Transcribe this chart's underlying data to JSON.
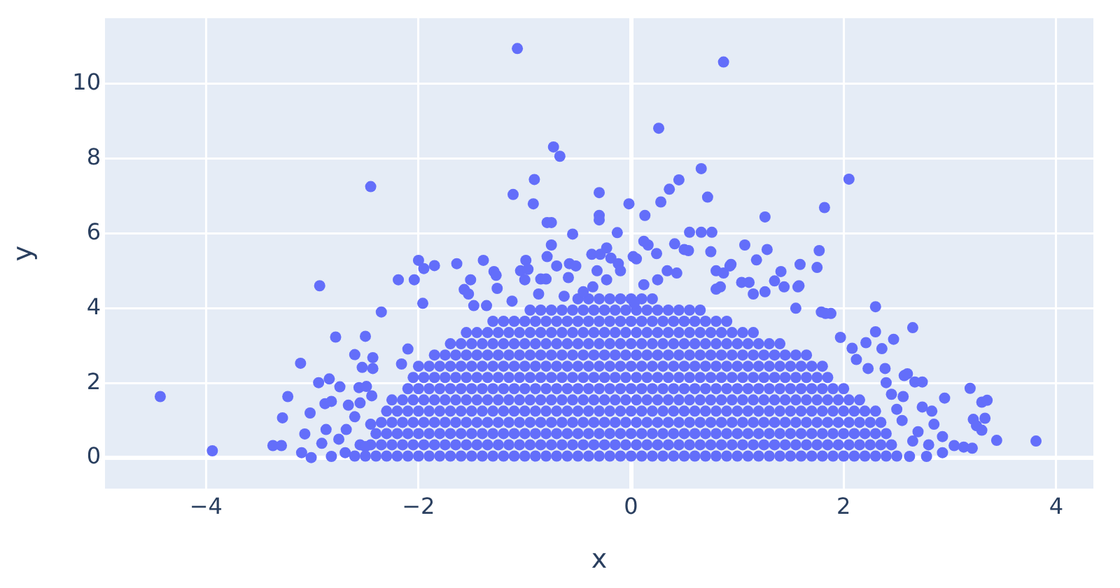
{
  "chart_data": {
    "type": "scatter",
    "xlabel": "x",
    "ylabel": "y",
    "color": "#636efa",
    "marker": "circle",
    "grid": true,
    "xlim": [
      -4.95,
      4.35
    ],
    "ylim": [
      -0.82,
      11.75
    ],
    "xticks": [
      {
        "value": -4,
        "label": "−4"
      },
      {
        "value": -2,
        "label": "−2"
      },
      0,
      2,
      4
    ],
    "yticks": [
      0,
      2,
      4,
      6,
      8,
      10
    ],
    "x": [
      -2.6,
      -2.5,
      -2.4,
      -2.3,
      -2.2,
      -2.1,
      -2,
      -1.9,
      -1.8,
      -1.7,
      -1.6,
      -1.5,
      -1.4,
      -1.3,
      -1.2,
      -1.1,
      -1,
      -0.9,
      -0.8,
      -0.7,
      -0.6,
      -0.5,
      -0.4,
      -0.3,
      -0.2,
      -0.1,
      0,
      0.1,
      0.2,
      0.3,
      0.4,
      0.5,
      0.6,
      0.7,
      0.8,
      0.9,
      1,
      1.1,
      1.2,
      1.3,
      1.4,
      1.5,
      1.6,
      1.7,
      1.8,
      1.9,
      2,
      2.1,
      2.2,
      2.3,
      2.4,
      2.5,
      -2.55,
      -2.45,
      -2.35,
      -2.25,
      -2.15,
      -2.05,
      -1.95,
      -1.85,
      -1.75,
      -1.65,
      -1.55,
      -1.45,
      -1.35,
      -1.25,
      -1.15,
      -1.05,
      -0.95,
      -0.85,
      -0.75,
      -0.65,
      -0.55,
      -0.45,
      -0.35,
      -0.25,
      -0.15,
      -0.05,
      0.05,
      0.15,
      0.25,
      0.35,
      0.45,
      0.55,
      0.65,
      0.75,
      0.85,
      0.95,
      1.05,
      1.15,
      1.25,
      1.35,
      1.45,
      1.55,
      1.65,
      1.75,
      1.85,
      1.95,
      2.05,
      2.15,
      2.25,
      2.35,
      2.45,
      -2.4,
      -2.3,
      -2.2,
      -2.1,
      -2,
      -1.9,
      -1.8,
      -1.7,
      -1.6,
      -1.5,
      -1.4,
      -1.3,
      -1.2,
      -1.1,
      -1,
      -0.9,
      -0.8,
      -0.7,
      -0.6,
      -0.5,
      -0.4,
      -0.3,
      -0.2,
      -0.1,
      0,
      0.1,
      0.2,
      0.3,
      0.4,
      0.5,
      0.6,
      0.7,
      0.8,
      0.9,
      1,
      1.1,
      1.2,
      1.3,
      1.4,
      1.5,
      1.6,
      1.7,
      1.8,
      1.9,
      2,
      2.1,
      2.2,
      2.3,
      2.4,
      -2.35,
      -2.25,
      -2.15,
      -2.05,
      -1.95,
      -1.85,
      -1.75,
      -1.65,
      -1.55,
      -1.45,
      -1.35,
      -1.25,
      -1.15,
      -1.05,
      -0.95,
      -0.85,
      -0.75,
      -0.65,
      -0.55,
      -0.45,
      -0.35,
      -0.25,
      -0.15,
      -0.05,
      0.05,
      0.15,
      0.25,
      0.35,
      0.45,
      0.55,
      0.65,
      0.75,
      0.85,
      0.95,
      1.05,
      1.15,
      1.25,
      1.35,
      1.45,
      1.55,
      1.65,
      1.75,
      1.85,
      1.95,
      2.05,
      2.15,
      2.25,
      2.35,
      -2.3,
      -2.2,
      -2.1,
      -2,
      -1.9,
      -1.8,
      -1.7,
      -1.6,
      -1.5,
      -1.4,
      -1.3,
      -1.2,
      -1.1,
      -1,
      -0.9,
      -0.8,
      -0.7,
      -0.6,
      -0.5,
      -0.4,
      -0.3,
      -0.2,
      -0.1,
      0,
      0.1,
      0.2,
      0.3,
      0.4,
      0.5,
      0.6,
      0.7,
      0.8,
      0.9,
      1,
      1.1,
      1.2,
      1.3,
      1.4,
      1.5,
      1.6,
      1.7,
      1.8,
      1.9,
      2,
      2.1,
      2.2,
      2.3,
      -2.25,
      -2.15,
      -2.05,
      -1.95,
      -1.85,
      -1.75,
      -1.65,
      -1.55,
      -1.45,
      -1.35,
      -1.25,
      -1.15,
      -1.05,
      -0.95,
      -0.85,
      -0.75,
      -0.65,
      -0.55,
      -0.45,
      -0.35,
      -0.25,
      -0.15,
      -0.05,
      0.05,
      0.15,
      0.25,
      0.35,
      0.45,
      0.55,
      0.65,
      0.75,
      0.85,
      0.95,
      1.05,
      1.15,
      1.25,
      1.35,
      1.45,
      1.55,
      1.65,
      1.75,
      1.85,
      1.95,
      2.05,
      2.15,
      -2.1,
      -2,
      -1.9,
      -1.8,
      -1.7,
      -1.6,
      -1.5,
      -1.4,
      -1.3,
      -1.2,
      -1.1,
      -1,
      -0.9,
      -0.8,
      -0.7,
      -0.6,
      -0.5,
      -0.4,
      -0.3,
      -0.2,
      -0.1,
      0,
      0.1,
      0.2,
      0.3,
      0.4,
      0.5,
      0.6,
      0.7,
      0.8,
      0.9,
      1,
      1.1,
      1.2,
      1.3,
      1.4,
      1.5,
      1.6,
      1.7,
      1.8,
      1.9,
      2,
      -2.05,
      -1.95,
      -1.85,
      -1.75,
      -1.65,
      -1.55,
      -1.45,
      -1.35,
      -1.25,
      -1.15,
      -1.05,
      -0.95,
      -0.85,
      -0.75,
      -0.65,
      -0.55,
      -0.45,
      -0.35,
      -0.25,
      -0.15,
      -0.05,
      0.05,
      0.15,
      0.25,
      0.35,
      0.45,
      0.55,
      0.65,
      0.75,
      0.85,
      0.95,
      1.05,
      1.15,
      1.25,
      1.35,
      1.45,
      1.55,
      1.65,
      1.75,
      1.85,
      -2,
      -1.9,
      -1.8,
      -1.7,
      -1.6,
      -1.5,
      -1.4,
      -1.3,
      -1.2,
      -1.1,
      -1,
      -0.9,
      -0.8,
      -0.7,
      -0.6,
      -0.5,
      -0.4,
      -0.3,
      -0.2,
      -0.1,
      0,
      0.1,
      0.2,
      0.3,
      0.4,
      0.5,
      0.6,
      0.7,
      0.8,
      0.9,
      1,
      1.1,
      1.2,
      1.3,
      1.4,
      1.5,
      1.6,
      1.7,
      1.8,
      -1.85,
      -1.75,
      -1.65,
      -1.55,
      -1.45,
      -1.35,
      -1.25,
      -1.15,
      -1.05,
      -0.95,
      -0.85,
      -0.75,
      -0.65,
      -0.55,
      -0.45,
      -0.35,
      -0.25,
      -0.15,
      -0.05,
      0.05,
      0.15,
      0.25,
      0.35,
      0.45,
      0.55,
      0.65,
      0.75,
      0.85,
      0.95,
      1.05,
      1.15,
      1.25,
      1.35,
      1.45,
      1.55,
      1.65,
      -1.7,
      -1.6,
      -1.5,
      -1.4,
      -1.3,
      -1.2,
      -1.1,
      -1,
      -0.9,
      -0.8,
      -0.7,
      -0.6,
      -0.5,
      -0.4,
      -0.3,
      -0.2,
      -0.1,
      0,
      0.1,
      0.2,
      0.3,
      0.4,
      0.5,
      0.6,
      0.7,
      0.8,
      0.9,
      1,
      1.1,
      1.2,
      1.3,
      1.4,
      -1.55,
      -1.45,
      -1.35,
      -1.25,
      -1.15,
      -1.05,
      -0.95,
      -0.85,
      -0.75,
      -0.65,
      -0.55,
      -0.45,
      -0.35,
      -0.25,
      -0.15,
      -0.05,
      0.05,
      0.15,
      0.25,
      0.35,
      0.45,
      0.55,
      0.65,
      0.75,
      0.85,
      0.95,
      1.05,
      1.15,
      -1.3,
      -1.2,
      -1.1,
      -1,
      -0.9,
      -0.8,
      -0.7,
      -0.6,
      -0.5,
      -0.4,
      -0.3,
      -0.2,
      -0.1,
      0,
      0.1,
      0.2,
      0.3,
      0.4,
      0.5,
      0.6,
      0.7,
      0.8,
      0.9,
      -0.95,
      -0.85,
      -0.75,
      -0.65,
      -0.55,
      -0.45,
      -0.35,
      -0.25,
      -0.15,
      -0.05,
      0.05,
      0.15,
      0.25,
      0.35,
      0.45,
      0.55,
      0.65,
      -0.5,
      -0.4,
      -0.3,
      -0.2,
      -0.1,
      0,
      0.1,
      0.2,
      -4.43,
      -3.94,
      -3.37,
      -3.29,
      -3.23,
      -3.28,
      -3.11,
      -2.93,
      -2.94,
      -2.84,
      -2.78,
      -2.74,
      -2.5,
      -2.6,
      -2.43,
      -2.43,
      -2.35,
      -2.53,
      -3.07,
      -3.1,
      -3.01,
      -3.02,
      -2.88,
      -2.82,
      -2.82,
      -2.68,
      -2.56,
      -2.49,
      -2.44,
      -2.66,
      -2.55,
      -2.16,
      -2.1,
      -1.96,
      -2.19,
      -2.04,
      -2.87,
      -2.91,
      -2.69,
      -2.75,
      -1.07,
      -2.45,
      -0.73,
      -0.67,
      -0.91,
      -1.11,
      -0.92,
      -0.79,
      -0.75,
      -0.75,
      -0.79,
      -0.99,
      -1.04,
      -0.97,
      -2,
      -1.95,
      -1.85,
      -1.64,
      -1.39,
      -1.29,
      -1.27,
      -1.51,
      -1,
      -0.85,
      -0.8,
      -0.7,
      -1.57,
      -1.53,
      -1.26,
      -1.36,
      -1.48,
      -1.12,
      -0.87,
      -0.58,
      -0.52,
      -0.59,
      -0.63,
      -0.45,
      -0.36,
      -0.37,
      -0.29,
      -0.23,
      -0.19,
      -0.12,
      -0.1,
      0.02,
      0.16,
      -0.32,
      -0.23,
      0.87,
      0.26,
      0.66,
      0.45,
      0.36,
      0.28,
      0.72,
      -0.02,
      -0.3,
      -0.3,
      -0.3,
      0.13,
      2.05,
      1.82,
      1.26,
      -0.55,
      -0.13,
      0.55,
      0.66,
      0.76,
      1.07,
      1.28,
      1.77,
      1.75,
      1.59,
      1.41,
      0.75,
      0.24,
      0.12,
      0.41,
      0.54,
      1.58,
      1.18,
      0.94,
      0.05,
      0.5,
      0.8,
      0.87,
      0.93,
      1.04,
      1.11,
      1.35,
      1.44,
      1.55,
      0.8,
      0.84,
      1.26,
      1.15,
      1.79,
      1.88,
      2.12,
      2.23,
      2.39,
      2.4,
      2.56,
      2.57,
      0.12,
      0.25,
      0.34,
      0.43,
      0.03,
      3.81,
      3.44,
      3.19,
      3.3,
      3.35,
      3.33,
      3.22,
      3.3,
      3.25,
      2.95,
      3.04,
      3.13,
      3.21,
      2.3,
      2.65,
      2.47,
      2.3,
      2.36,
      2.21,
      2.08,
      2.6,
      2.67,
      2.74,
      2.83,
      2.74,
      2.93,
      1.97,
      1.83,
      1.57,
      2.78,
      2.62,
      2.93,
      2.7,
      2.85,
      2.55,
      2.65,
      2.8,
      2.5,
      2.45,
      -2.45,
      -2.6,
      -2.5
    ],
    "values": [
      0.05,
      0.05,
      0.05,
      0.05,
      0.05,
      0.05,
      0.05,
      0.05,
      0.05,
      0.05,
      0.05,
      0.05,
      0.05,
      0.05,
      0.05,
      0.05,
      0.05,
      0.05,
      0.05,
      0.05,
      0.05,
      0.05,
      0.05,
      0.05,
      0.05,
      0.05,
      0.05,
      0.05,
      0.05,
      0.05,
      0.05,
      0.05,
      0.05,
      0.05,
      0.05,
      0.05,
      0.05,
      0.05,
      0.05,
      0.05,
      0.05,
      0.05,
      0.05,
      0.05,
      0.05,
      0.05,
      0.05,
      0.05,
      0.05,
      0.05,
      0.05,
      0.05,
      0.35,
      0.35,
      0.35,
      0.35,
      0.35,
      0.35,
      0.35,
      0.35,
      0.35,
      0.35,
      0.35,
      0.35,
      0.35,
      0.35,
      0.35,
      0.35,
      0.35,
      0.35,
      0.35,
      0.35,
      0.35,
      0.35,
      0.35,
      0.35,
      0.35,
      0.35,
      0.35,
      0.35,
      0.35,
      0.35,
      0.35,
      0.35,
      0.35,
      0.35,
      0.35,
      0.35,
      0.35,
      0.35,
      0.35,
      0.35,
      0.35,
      0.35,
      0.35,
      0.35,
      0.35,
      0.35,
      0.35,
      0.35,
      0.35,
      0.35,
      0.35,
      0.65,
      0.65,
      0.65,
      0.65,
      0.65,
      0.65,
      0.65,
      0.65,
      0.65,
      0.65,
      0.65,
      0.65,
      0.65,
      0.65,
      0.65,
      0.65,
      0.65,
      0.65,
      0.65,
      0.65,
      0.65,
      0.65,
      0.65,
      0.65,
      0.65,
      0.65,
      0.65,
      0.65,
      0.65,
      0.65,
      0.65,
      0.65,
      0.65,
      0.65,
      0.65,
      0.65,
      0.65,
      0.65,
      0.65,
      0.65,
      0.65,
      0.65,
      0.65,
      0.65,
      0.65,
      0.65,
      0.65,
      0.65,
      0.65,
      0.95,
      0.95,
      0.95,
      0.95,
      0.95,
      0.95,
      0.95,
      0.95,
      0.95,
      0.95,
      0.95,
      0.95,
      0.95,
      0.95,
      0.95,
      0.95,
      0.95,
      0.95,
      0.95,
      0.95,
      0.95,
      0.95,
      0.95,
      0.95,
      0.95,
      0.95,
      0.95,
      0.95,
      0.95,
      0.95,
      0.95,
      0.95,
      0.95,
      0.95,
      0.95,
      0.95,
      0.95,
      0.95,
      0.95,
      0.95,
      0.95,
      0.95,
      0.95,
      0.95,
      0.95,
      0.95,
      0.95,
      0.95,
      1.25,
      1.25,
      1.25,
      1.25,
      1.25,
      1.25,
      1.25,
      1.25,
      1.25,
      1.25,
      1.25,
      1.25,
      1.25,
      1.25,
      1.25,
      1.25,
      1.25,
      1.25,
      1.25,
      1.25,
      1.25,
      1.25,
      1.25,
      1.25,
      1.25,
      1.25,
      1.25,
      1.25,
      1.25,
      1.25,
      1.25,
      1.25,
      1.25,
      1.25,
      1.25,
      1.25,
      1.25,
      1.25,
      1.25,
      1.25,
      1.25,
      1.25,
      1.25,
      1.25,
      1.25,
      1.25,
      1.25,
      1.55,
      1.55,
      1.55,
      1.55,
      1.55,
      1.55,
      1.55,
      1.55,
      1.55,
      1.55,
      1.55,
      1.55,
      1.55,
      1.55,
      1.55,
      1.55,
      1.55,
      1.55,
      1.55,
      1.55,
      1.55,
      1.55,
      1.55,
      1.55,
      1.55,
      1.55,
      1.55,
      1.55,
      1.55,
      1.55,
      1.55,
      1.55,
      1.55,
      1.55,
      1.55,
      1.55,
      1.55,
      1.55,
      1.55,
      1.55,
      1.55,
      1.55,
      1.55,
      1.55,
      1.55,
      1.85,
      1.85,
      1.85,
      1.85,
      1.85,
      1.85,
      1.85,
      1.85,
      1.85,
      1.85,
      1.85,
      1.85,
      1.85,
      1.85,
      1.85,
      1.85,
      1.85,
      1.85,
      1.85,
      1.85,
      1.85,
      1.85,
      1.85,
      1.85,
      1.85,
      1.85,
      1.85,
      1.85,
      1.85,
      1.85,
      1.85,
      1.85,
      1.85,
      1.85,
      1.85,
      1.85,
      1.85,
      1.85,
      1.85,
      1.85,
      1.85,
      1.85,
      2.15,
      2.15,
      2.15,
      2.15,
      2.15,
      2.15,
      2.15,
      2.15,
      2.15,
      2.15,
      2.15,
      2.15,
      2.15,
      2.15,
      2.15,
      2.15,
      2.15,
      2.15,
      2.15,
      2.15,
      2.15,
      2.15,
      2.15,
      2.15,
      2.15,
      2.15,
      2.15,
      2.15,
      2.15,
      2.15,
      2.15,
      2.15,
      2.15,
      2.15,
      2.15,
      2.15,
      2.15,
      2.15,
      2.15,
      2.15,
      2.45,
      2.45,
      2.45,
      2.45,
      2.45,
      2.45,
      2.45,
      2.45,
      2.45,
      2.45,
      2.45,
      2.45,
      2.45,
      2.45,
      2.45,
      2.45,
      2.45,
      2.45,
      2.45,
      2.45,
      2.45,
      2.45,
      2.45,
      2.45,
      2.45,
      2.45,
      2.45,
      2.45,
      2.45,
      2.45,
      2.45,
      2.45,
      2.45,
      2.45,
      2.45,
      2.45,
      2.45,
      2.45,
      2.45,
      2.75,
      2.75,
      2.75,
      2.75,
      2.75,
      2.75,
      2.75,
      2.75,
      2.75,
      2.75,
      2.75,
      2.75,
      2.75,
      2.75,
      2.75,
      2.75,
      2.75,
      2.75,
      2.75,
      2.75,
      2.75,
      2.75,
      2.75,
      2.75,
      2.75,
      2.75,
      2.75,
      2.75,
      2.75,
      2.75,
      2.75,
      2.75,
      2.75,
      2.75,
      2.75,
      2.75,
      3.05,
      3.05,
      3.05,
      3.05,
      3.05,
      3.05,
      3.05,
      3.05,
      3.05,
      3.05,
      3.05,
      3.05,
      3.05,
      3.05,
      3.05,
      3.05,
      3.05,
      3.05,
      3.05,
      3.05,
      3.05,
      3.05,
      3.05,
      3.05,
      3.05,
      3.05,
      3.05,
      3.05,
      3.05,
      3.05,
      3.05,
      3.05,
      3.35,
      3.35,
      3.35,
      3.35,
      3.35,
      3.35,
      3.35,
      3.35,
      3.35,
      3.35,
      3.35,
      3.35,
      3.35,
      3.35,
      3.35,
      3.35,
      3.35,
      3.35,
      3.35,
      3.35,
      3.35,
      3.35,
      3.35,
      3.35,
      3.35,
      3.35,
      3.35,
      3.35,
      3.65,
      3.65,
      3.65,
      3.65,
      3.65,
      3.65,
      3.65,
      3.65,
      3.65,
      3.65,
      3.65,
      3.65,
      3.65,
      3.65,
      3.65,
      3.65,
      3.65,
      3.65,
      3.65,
      3.65,
      3.65,
      3.65,
      3.65,
      3.95,
      3.95,
      3.95,
      3.95,
      3.95,
      3.95,
      3.95,
      3.95,
      3.95,
      3.95,
      3.95,
      3.95,
      3.95,
      3.95,
      3.95,
      3.95,
      3.95,
      4.25,
      4.25,
      4.25,
      4.25,
      4.25,
      4.25,
      4.25,
      4.25,
      1.64,
      0.19,
      0.33,
      0.33,
      1.64,
      1.07,
      2.53,
      4.6,
      2.01,
      2.11,
      3.23,
      1.9,
      3.25,
      2.76,
      2.68,
      2.39,
      3.9,
      2.42,
      0.64,
      0.14,
      0.01,
      1.2,
      1.45,
      1.51,
      0.04,
      0.76,
      1.88,
      1.91,
      1.66,
      1.41,
      1.47,
      2.51,
      2.91,
      4.13,
      4.76,
      4.76,
      0.76,
      0.39,
      0.14,
      0.5,
      10.94,
      7.25,
      8.31,
      8.06,
      7.44,
      7.04,
      6.79,
      6.29,
      6.29,
      5.69,
      5.38,
      5.28,
      5,
      5.04,
      5.28,
      5.06,
      5.14,
      5.19,
      5.28,
      4.98,
      4.88,
      4.76,
      4.76,
      4.78,
      4.78,
      5.13,
      4.5,
      4.38,
      4.53,
      4.07,
      4.07,
      4.19,
      4.38,
      5.19,
      5.13,
      4.82,
      4.32,
      4.44,
      4.57,
      5.44,
      5.44,
      5.61,
      5.34,
      5.19,
      5,
      5.38,
      5.69,
      5,
      4.76,
      10.58,
      8.81,
      7.73,
      7.43,
      7.18,
      6.84,
      6.97,
      6.79,
      7.09,
      6.48,
      6.36,
      6.48,
      7.45,
      6.69,
      6.44,
      5.98,
      6.02,
      6.03,
      6.03,
      6.03,
      5.69,
      5.57,
      5.54,
      5.09,
      5.17,
      4.98,
      5.51,
      5.46,
      5.79,
      5.72,
      5.54,
      4.6,
      5.29,
      5.17,
      5.32,
      5.57,
      5,
      4.94,
      5.13,
      4.69,
      4.69,
      4.73,
      4.57,
      4,
      4.51,
      4.57,
      4.44,
      4.38,
      3.9,
      3.86,
      2.63,
      2.39,
      2.39,
      2.01,
      1.64,
      2.2,
      4.63,
      4.76,
      5,
      4.94,
      4.13,
      0.45,
      0.47,
      1.86,
      1.49,
      1.54,
      1.06,
      1.03,
      0.74,
      0.86,
      1.6,
      0.33,
      0.29,
      0.26,
      4.04,
      3.48,
      3.17,
      3.37,
      2.92,
      3.08,
      2.93,
      2.25,
      2.03,
      2.03,
      1.25,
      1.36,
      0.57,
      3.22,
      3.86,
      4.57,
      0.04,
      0.04,
      0.14,
      0.7,
      0.9,
      1,
      0.45,
      0.35,
      1.3,
      1.7,
      0.9,
      1.1,
      0.3
    ]
  }
}
